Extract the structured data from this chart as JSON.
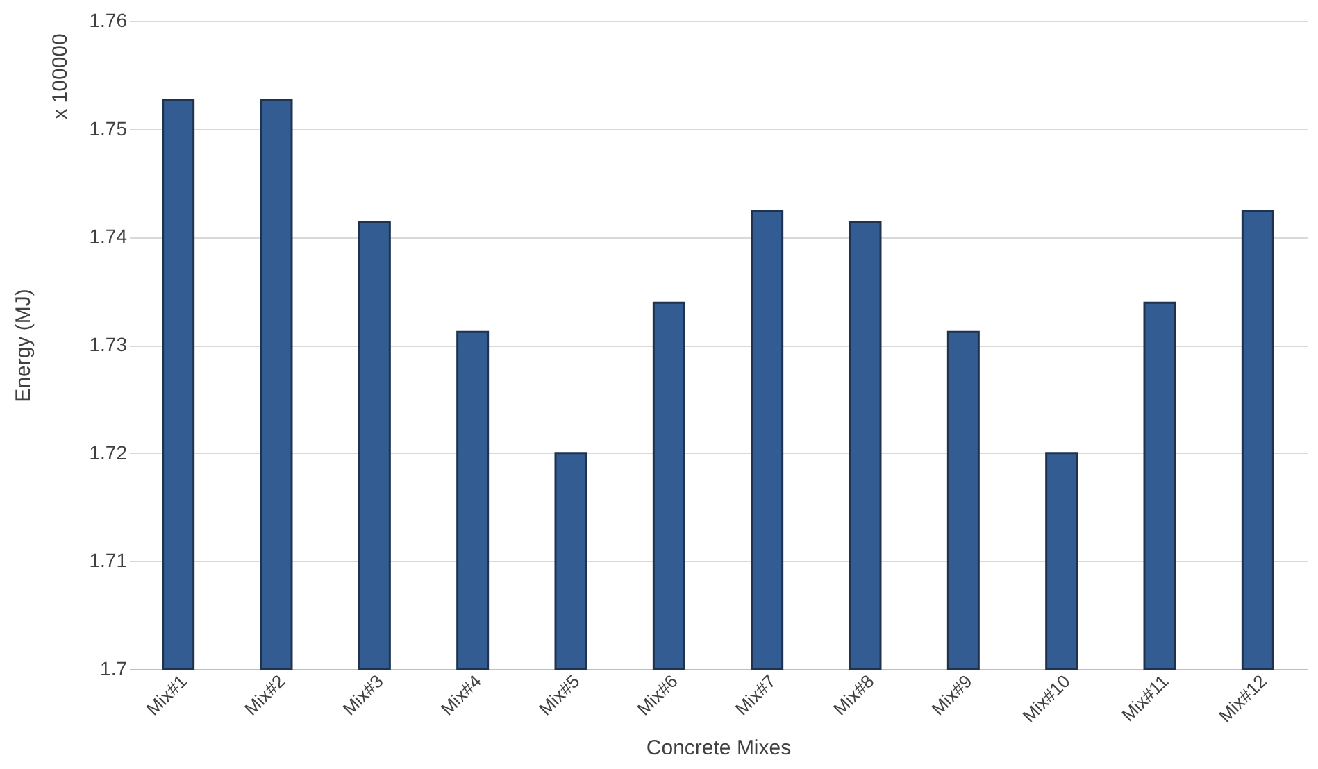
{
  "chart_data": {
    "type": "bar",
    "xlabel": "Concrete Mixes",
    "ylabel": "Energy (MJ)",
    "annotations": [
      "x 100000"
    ],
    "categories": [
      "Mix#1",
      "Mix#2",
      "Mix#3",
      "Mix#4",
      "Mix#5",
      "Mix#6",
      "Mix#7",
      "Mix#8",
      "Mix#9",
      "Mix#10",
      "Mix#11",
      "Mix#12"
    ],
    "values": [
      1.7527,
      1.7527,
      1.7414,
      1.7312,
      1.72,
      1.7339,
      1.7424,
      1.7414,
      1.7312,
      1.72,
      1.7339,
      1.7424
    ],
    "color": "#335d92",
    "ylim": [
      1.7,
      1.76
    ],
    "yticks": [
      1.7,
      1.71,
      1.72,
      1.73,
      1.74,
      1.75,
      1.76
    ],
    "grid": "y",
    "legend": false
  }
}
